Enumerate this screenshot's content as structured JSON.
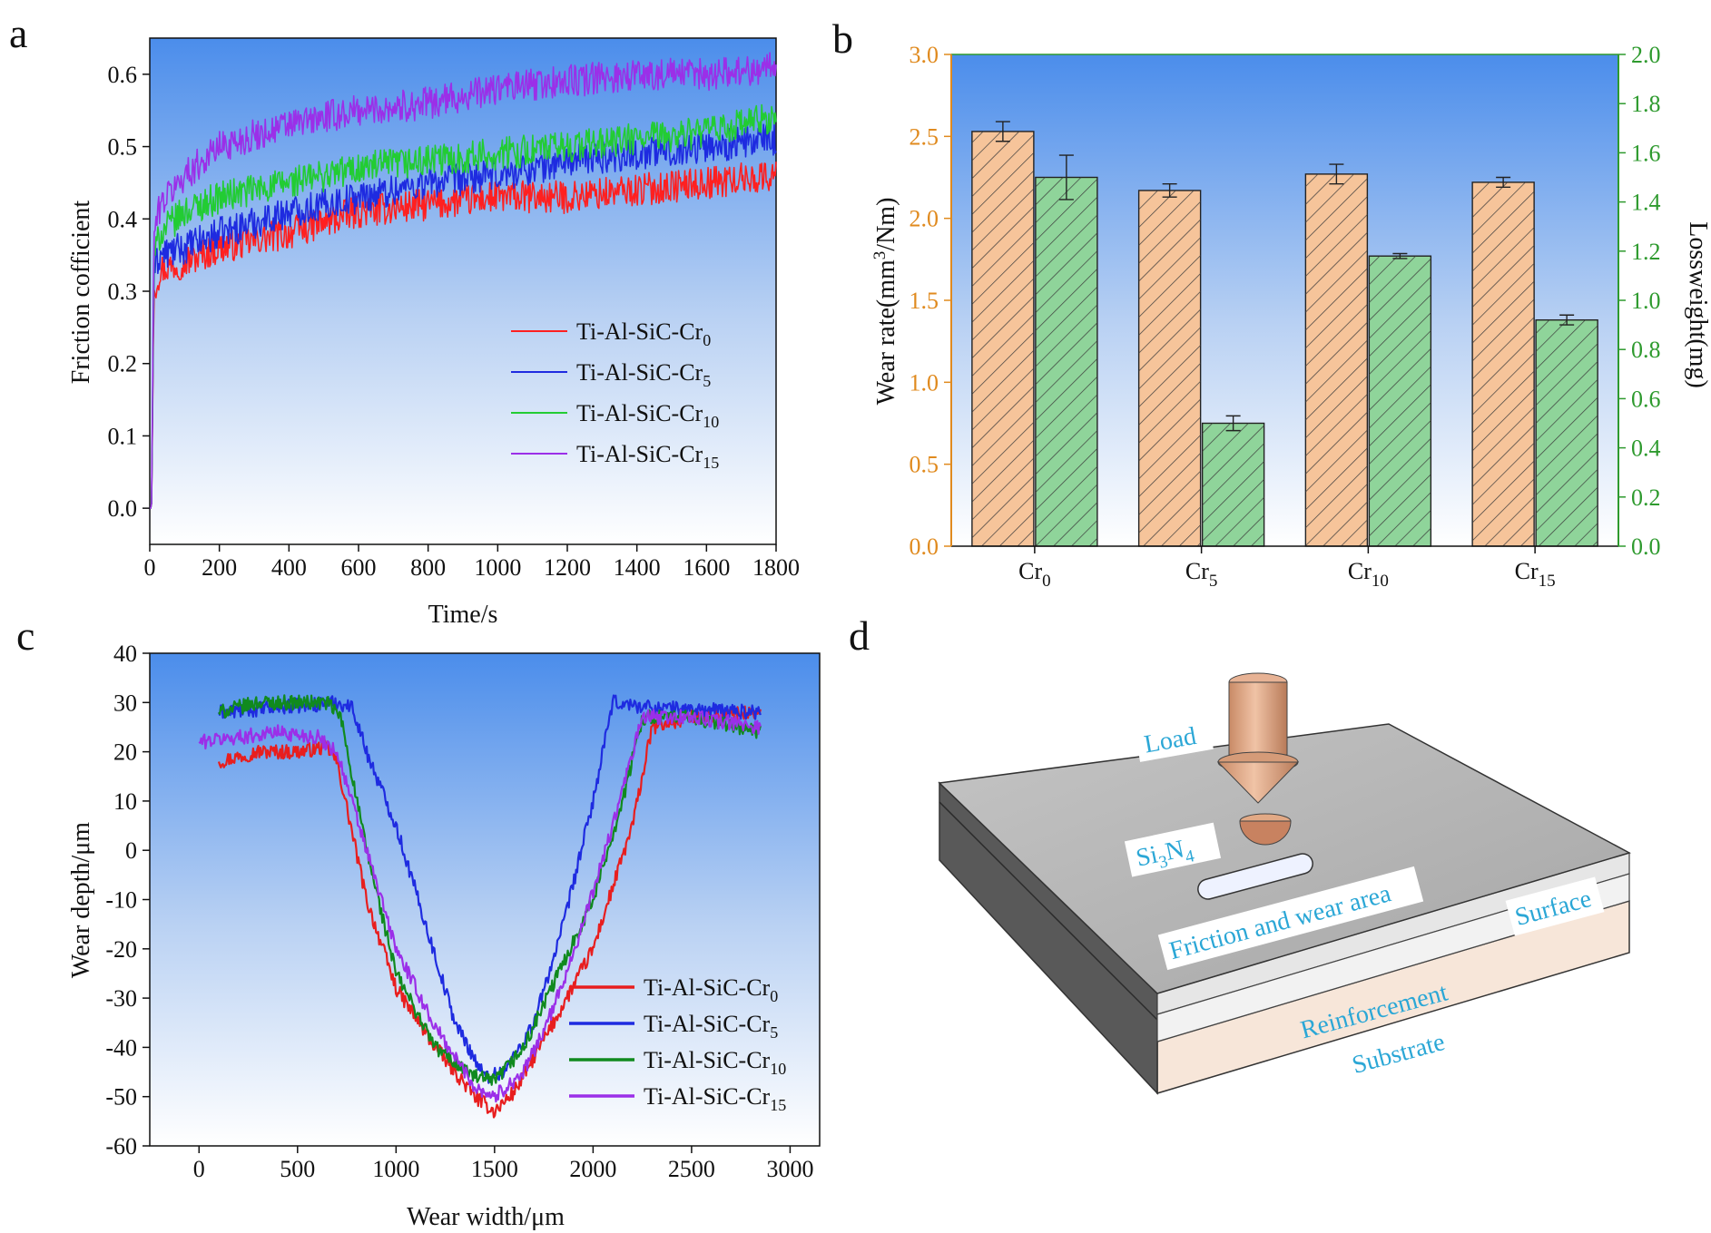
{
  "panel_labels": [
    "a",
    "b",
    "c",
    "d"
  ],
  "chart_data": [
    {
      "panel": "a",
      "type": "line",
      "xlabel": "Time/s",
      "ylabel": "Friction cofficient",
      "xlim": [
        0,
        1800
      ],
      "ylim": [
        -0.05,
        0.65
      ],
      "xticks": [
        0,
        200,
        400,
        600,
        800,
        1000,
        1200,
        1400,
        1600,
        1800
      ],
      "yticks": [
        0.0,
        0.1,
        0.2,
        0.3,
        0.4,
        0.5,
        0.6
      ],
      "legend_position": "lower-right",
      "series": [
        {
          "name": "Ti-Al-SiC-Cr0",
          "label_base": "Ti-Al-SiC-Cr",
          "label_sub": "0",
          "color": "#FF2020",
          "noise": 0.045,
          "x": [
            0,
            5,
            12,
            30,
            100,
            200,
            400,
            600,
            800,
            1000,
            1200,
            1400,
            1600,
            1800
          ],
          "y": [
            0.0,
            0.0,
            0.3,
            0.33,
            0.34,
            0.36,
            0.38,
            0.41,
            0.42,
            0.43,
            0.43,
            0.44,
            0.45,
            0.46
          ]
        },
        {
          "name": "Ti-Al-SiC-Cr5",
          "label_base": "Ti-Al-SiC-Cr",
          "label_sub": "5",
          "color": "#1E2BE0",
          "noise": 0.045,
          "x": [
            0,
            5,
            12,
            30,
            100,
            200,
            400,
            600,
            800,
            1000,
            1200,
            1400,
            1600,
            1800
          ],
          "y": [
            0.0,
            0.0,
            0.33,
            0.35,
            0.36,
            0.38,
            0.41,
            0.43,
            0.45,
            0.46,
            0.48,
            0.49,
            0.5,
            0.51
          ]
        },
        {
          "name": "Ti-Al-SiC-Cr10",
          "label_base": "Ti-Al-SiC-Cr",
          "label_sub": "10",
          "color": "#22CC33",
          "noise": 0.045,
          "x": [
            0,
            5,
            12,
            30,
            100,
            200,
            400,
            600,
            800,
            1000,
            1200,
            1400,
            1600,
            1800
          ],
          "y": [
            0.0,
            0.0,
            0.35,
            0.38,
            0.41,
            0.43,
            0.45,
            0.47,
            0.48,
            0.49,
            0.5,
            0.51,
            0.52,
            0.54
          ]
        },
        {
          "name": "Ti-Al-SiC-Cr15",
          "label_base": "Ti-Al-SiC-Cr",
          "label_sub": "15",
          "color": "#9B2FE8",
          "noise": 0.045,
          "x": [
            0,
            5,
            12,
            30,
            100,
            200,
            400,
            600,
            800,
            1000,
            1200,
            1400,
            1600,
            1800
          ],
          "y": [
            0.0,
            0.0,
            0.38,
            0.42,
            0.46,
            0.5,
            0.53,
            0.55,
            0.56,
            0.58,
            0.59,
            0.6,
            0.6,
            0.61
          ]
        }
      ]
    },
    {
      "panel": "b",
      "type": "bar",
      "categories": [
        "Cr0",
        "Cr5",
        "Cr10",
        "Cr15"
      ],
      "category_labels": [
        {
          "base": "Cr",
          "sub": "0"
        },
        {
          "base": "Cr",
          "sub": "5"
        },
        {
          "base": "Cr",
          "sub": "10"
        },
        {
          "base": "Cr",
          "sub": "15"
        }
      ],
      "ylabel_left": "Wear rate(mm3/Nm)",
      "ylabel_left_parts": {
        "pre": "Wear rate(mm",
        "sup": "3",
        "post": "/Nm)"
      },
      "ylabel_right": "Lossweight(mg)",
      "ylim_left": [
        0.0,
        3.0
      ],
      "ylim_right": [
        0.0,
        2.0
      ],
      "yticks_left": [
        "0.0",
        "0.5",
        "1.0",
        "1.5",
        "2.0",
        "2.5",
        "3.0"
      ],
      "yticks_right": [
        "0.0",
        "0.2",
        "0.4",
        "0.6",
        "0.8",
        "1.0",
        "1.2",
        "1.4",
        "1.6",
        "1.8",
        "2.0"
      ],
      "series": [
        {
          "name": "Wear rate",
          "axis": "left",
          "color": "#F6C49A",
          "values": [
            2.53,
            2.17,
            2.27,
            2.22
          ],
          "errors": [
            0.06,
            0.04,
            0.06,
            0.03
          ]
        },
        {
          "name": "Lossweight",
          "axis": "right",
          "color": "#8FD49A",
          "values": [
            1.5,
            0.5,
            1.18,
            0.92
          ],
          "errors": [
            0.09,
            0.03,
            0.01,
            0.02
          ]
        }
      ]
    },
    {
      "panel": "c",
      "type": "line",
      "xlabel": "Wear width/μm",
      "ylabel": "Wear depth/μm",
      "xlim": [
        -250,
        3150
      ],
      "ylim": [
        -60,
        40
      ],
      "xticks": [
        0,
        500,
        1000,
        1500,
        2000,
        2500,
        3000
      ],
      "yticks": [
        -60,
        -50,
        -40,
        -30,
        -20,
        -10,
        0,
        10,
        20,
        30,
        40
      ],
      "legend_position": "lower-right",
      "series": [
        {
          "name": "Ti-Al-SiC-Cr0",
          "label_base": "Ti-Al-SiC-Cr",
          "label_sub": "0",
          "color": "#E81E1E",
          "noise": 3.0,
          "x": [
            100,
            300,
            500,
            650,
            700,
            850,
            1000,
            1200,
            1400,
            1500,
            1600,
            1800,
            2000,
            2200,
            2300,
            2500,
            2850
          ],
          "y": [
            18,
            20,
            20,
            21,
            18,
            -10,
            -28,
            -40,
            -50,
            -53,
            -49,
            -35,
            -20,
            5,
            25,
            27,
            28
          ]
        },
        {
          "name": "Ti-Al-SiC-Cr5",
          "label_base": "Ti-Al-SiC-Cr",
          "label_sub": "5",
          "color": "#1E2BE0",
          "noise": 3.0,
          "x": [
            100,
            400,
            700,
            780,
            850,
            1000,
            1150,
            1300,
            1450,
            1550,
            1700,
            1850,
            2000,
            2080,
            2100,
            2300,
            2850
          ],
          "y": [
            28,
            29,
            30,
            29,
            20,
            5,
            -15,
            -35,
            -46,
            -45,
            -35,
            -15,
            10,
            26,
            30,
            29,
            28
          ]
        },
        {
          "name": "Ti-Al-SiC-Cr10",
          "label_base": "Ti-Al-SiC-Cr",
          "label_sub": "10",
          "color": "#108A1E",
          "noise": 3.0,
          "x": [
            100,
            300,
            500,
            650,
            720,
            850,
            1000,
            1200,
            1400,
            1500,
            1650,
            1800,
            2000,
            2150,
            2250,
            2500,
            2850
          ],
          "y": [
            28,
            30,
            30,
            30,
            27,
            0,
            -25,
            -40,
            -46,
            -47,
            -40,
            -27,
            -10,
            10,
            27,
            27,
            24
          ]
        },
        {
          "name": "Ti-Al-SiC-Cr15",
          "label_base": "Ti-Al-SiC-Cr",
          "label_sub": "15",
          "color": "#9B2FE8",
          "noise": 3.0,
          "x": [
            0,
            200,
            400,
            600,
            700,
            850,
            1000,
            1200,
            1400,
            1500,
            1650,
            1800,
            1950,
            2100,
            2250,
            2500,
            2850
          ],
          "y": [
            22,
            23,
            24,
            23,
            20,
            0,
            -20,
            -36,
            -48,
            -50,
            -45,
            -32,
            -15,
            5,
            27,
            27,
            25
          ]
        }
      ]
    }
  ],
  "diagram": {
    "labels": {
      "load": "Load",
      "si3n4": "Si3N4",
      "si3n4_parts": {
        "pre": "Si",
        "sub1": "3",
        "mid": "N",
        "sub2": "4"
      },
      "friction_area": "Friction and wear area",
      "surface": "Surface",
      "reinforcement": "Reinforcement",
      "substrate": "Substrate"
    },
    "colors": {
      "label_text": "#2BA7D6",
      "pin": "#DCA07C",
      "top_face": "#B4B4B4",
      "side_dark": "#595959",
      "substrate": "#F7E6D9"
    }
  },
  "colors": {
    "plot_bg_top": "#4B8DEB",
    "plot_bg_bottom": "#FFFFFF",
    "left_axis_b": "#E08A1E",
    "right_axis_b": "#2E9A2E"
  }
}
